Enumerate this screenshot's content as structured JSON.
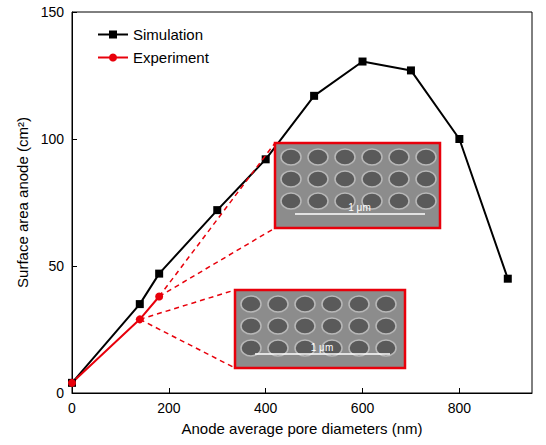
{
  "chart_data": {
    "type": "line",
    "x_label": "Anode average pore diameters (nm)",
    "y_label": "Surface area anode (cm²)",
    "xlim": [
      0,
      950
    ],
    "xticks": [
      0,
      200,
      400,
      600,
      800
    ],
    "ylim": [
      0,
      150
    ],
    "yticks": [
      0,
      50,
      100,
      150
    ],
    "grid": false,
    "legend": "upper left",
    "series": [
      {
        "name": "Simulation",
        "color": "#000000",
        "marker": "square",
        "line_style": "solid",
        "x": [
          0,
          140,
          180,
          300,
          400,
          500,
          600,
          700,
          800,
          900
        ],
        "values": [
          4,
          35,
          47,
          72,
          92,
          117,
          130.5,
          127,
          100,
          45
        ]
      },
      {
        "name": "Experiment",
        "color": "#e8000b",
        "marker": "circle",
        "line_style": "solid",
        "x": [
          0,
          140,
          180
        ],
        "values": [
          4,
          29,
          38
        ]
      }
    ],
    "annotations": [
      {
        "text": "1 μm",
        "x": 180
      },
      {
        "text": "1 μm",
        "x": 140
      }
    ]
  }
}
